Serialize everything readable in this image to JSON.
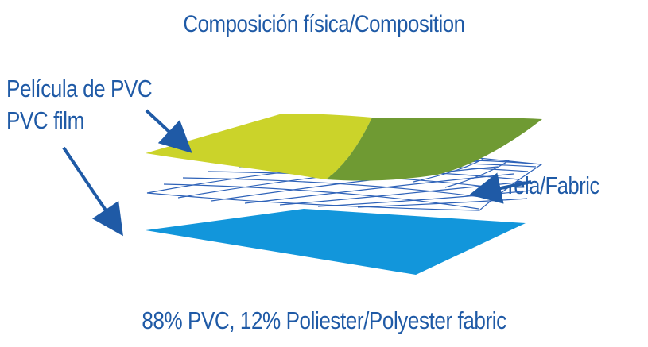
{
  "diagram": {
    "title": "Composición física/Composition",
    "labels": {
      "pvc_film_es": "Película de PVC",
      "pvc_film_en": "PVC film",
      "fabric": "Tela/Fabric"
    },
    "footer": "88% PVC, 12% Poliester/Polyester fabric"
  },
  "colors": {
    "text": "#1f5aa6",
    "arrow": "#1f5aa6",
    "film_top_light": "#cbd32a",
    "film_top_dark": "#6f9a33",
    "fabric_grid": "#2e62b8",
    "film_bottom": "#1296db"
  }
}
